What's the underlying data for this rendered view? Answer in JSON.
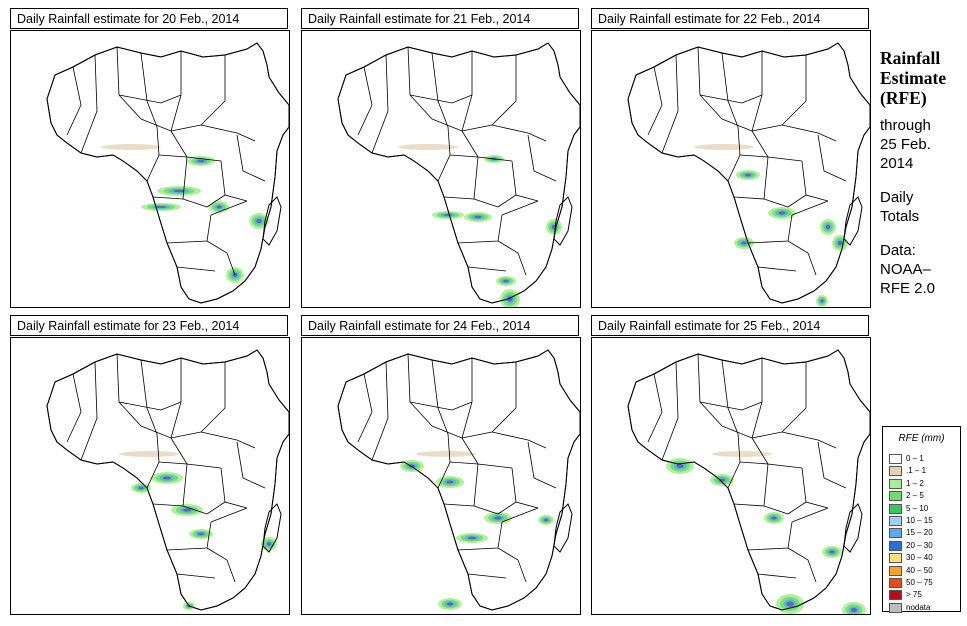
{
  "panels": [
    {
      "title": "Daily Rainfall estimate for  20 Feb., 2014"
    },
    {
      "title": "Daily Rainfall estimate for  21 Feb., 2014"
    },
    {
      "title": "Daily Rainfall estimate for  22 Feb., 2014"
    },
    {
      "title": "Daily Rainfall estimate for  23 Feb., 2014"
    },
    {
      "title": "Daily Rainfall estimate for  24 Feb., 2014"
    },
    {
      "title": "Daily Rainfall estimate for  25 Feb., 2014"
    }
  ],
  "side": {
    "title_line1": "Rainfall",
    "title_line2": "Estimate",
    "title_line3": "(RFE)",
    "through_label": "through",
    "through_date1": "25 Feb.",
    "through_date2": "2014",
    "daily_line1": "Daily",
    "daily_line2": "Totals",
    "data_line1": "Data:",
    "data_line2": "NOAA–",
    "data_line3": "RFE 2.0"
  },
  "legend": {
    "title": "RFE (mm)",
    "items": [
      {
        "label": "0 – 1",
        "color": "#ffffff"
      },
      {
        "label": ".1 – 1",
        "color": "#e6d3bb"
      },
      {
        "label": "1 – 2",
        "color": "#a9ee95"
      },
      {
        "label": "2 – 5",
        "color": "#6fdc6f"
      },
      {
        "label": "5 – 10",
        "color": "#41c45e"
      },
      {
        "label": "10 – 15",
        "color": "#9fd0f5"
      },
      {
        "label": "15 – 20",
        "color": "#5ea9ef"
      },
      {
        "label": "20 – 30",
        "color": "#2a6fd9"
      },
      {
        "label": "30 – 40",
        "color": "#fbe27a"
      },
      {
        "label": "40 – 50",
        "color": "#f5a42c"
      },
      {
        "label": "50 – 75",
        "color": "#e84a1c"
      },
      {
        "label": "> 75",
        "color": "#b3101c"
      },
      {
        "label": "nodata",
        "color": "#bdbdbd"
      }
    ]
  }
}
